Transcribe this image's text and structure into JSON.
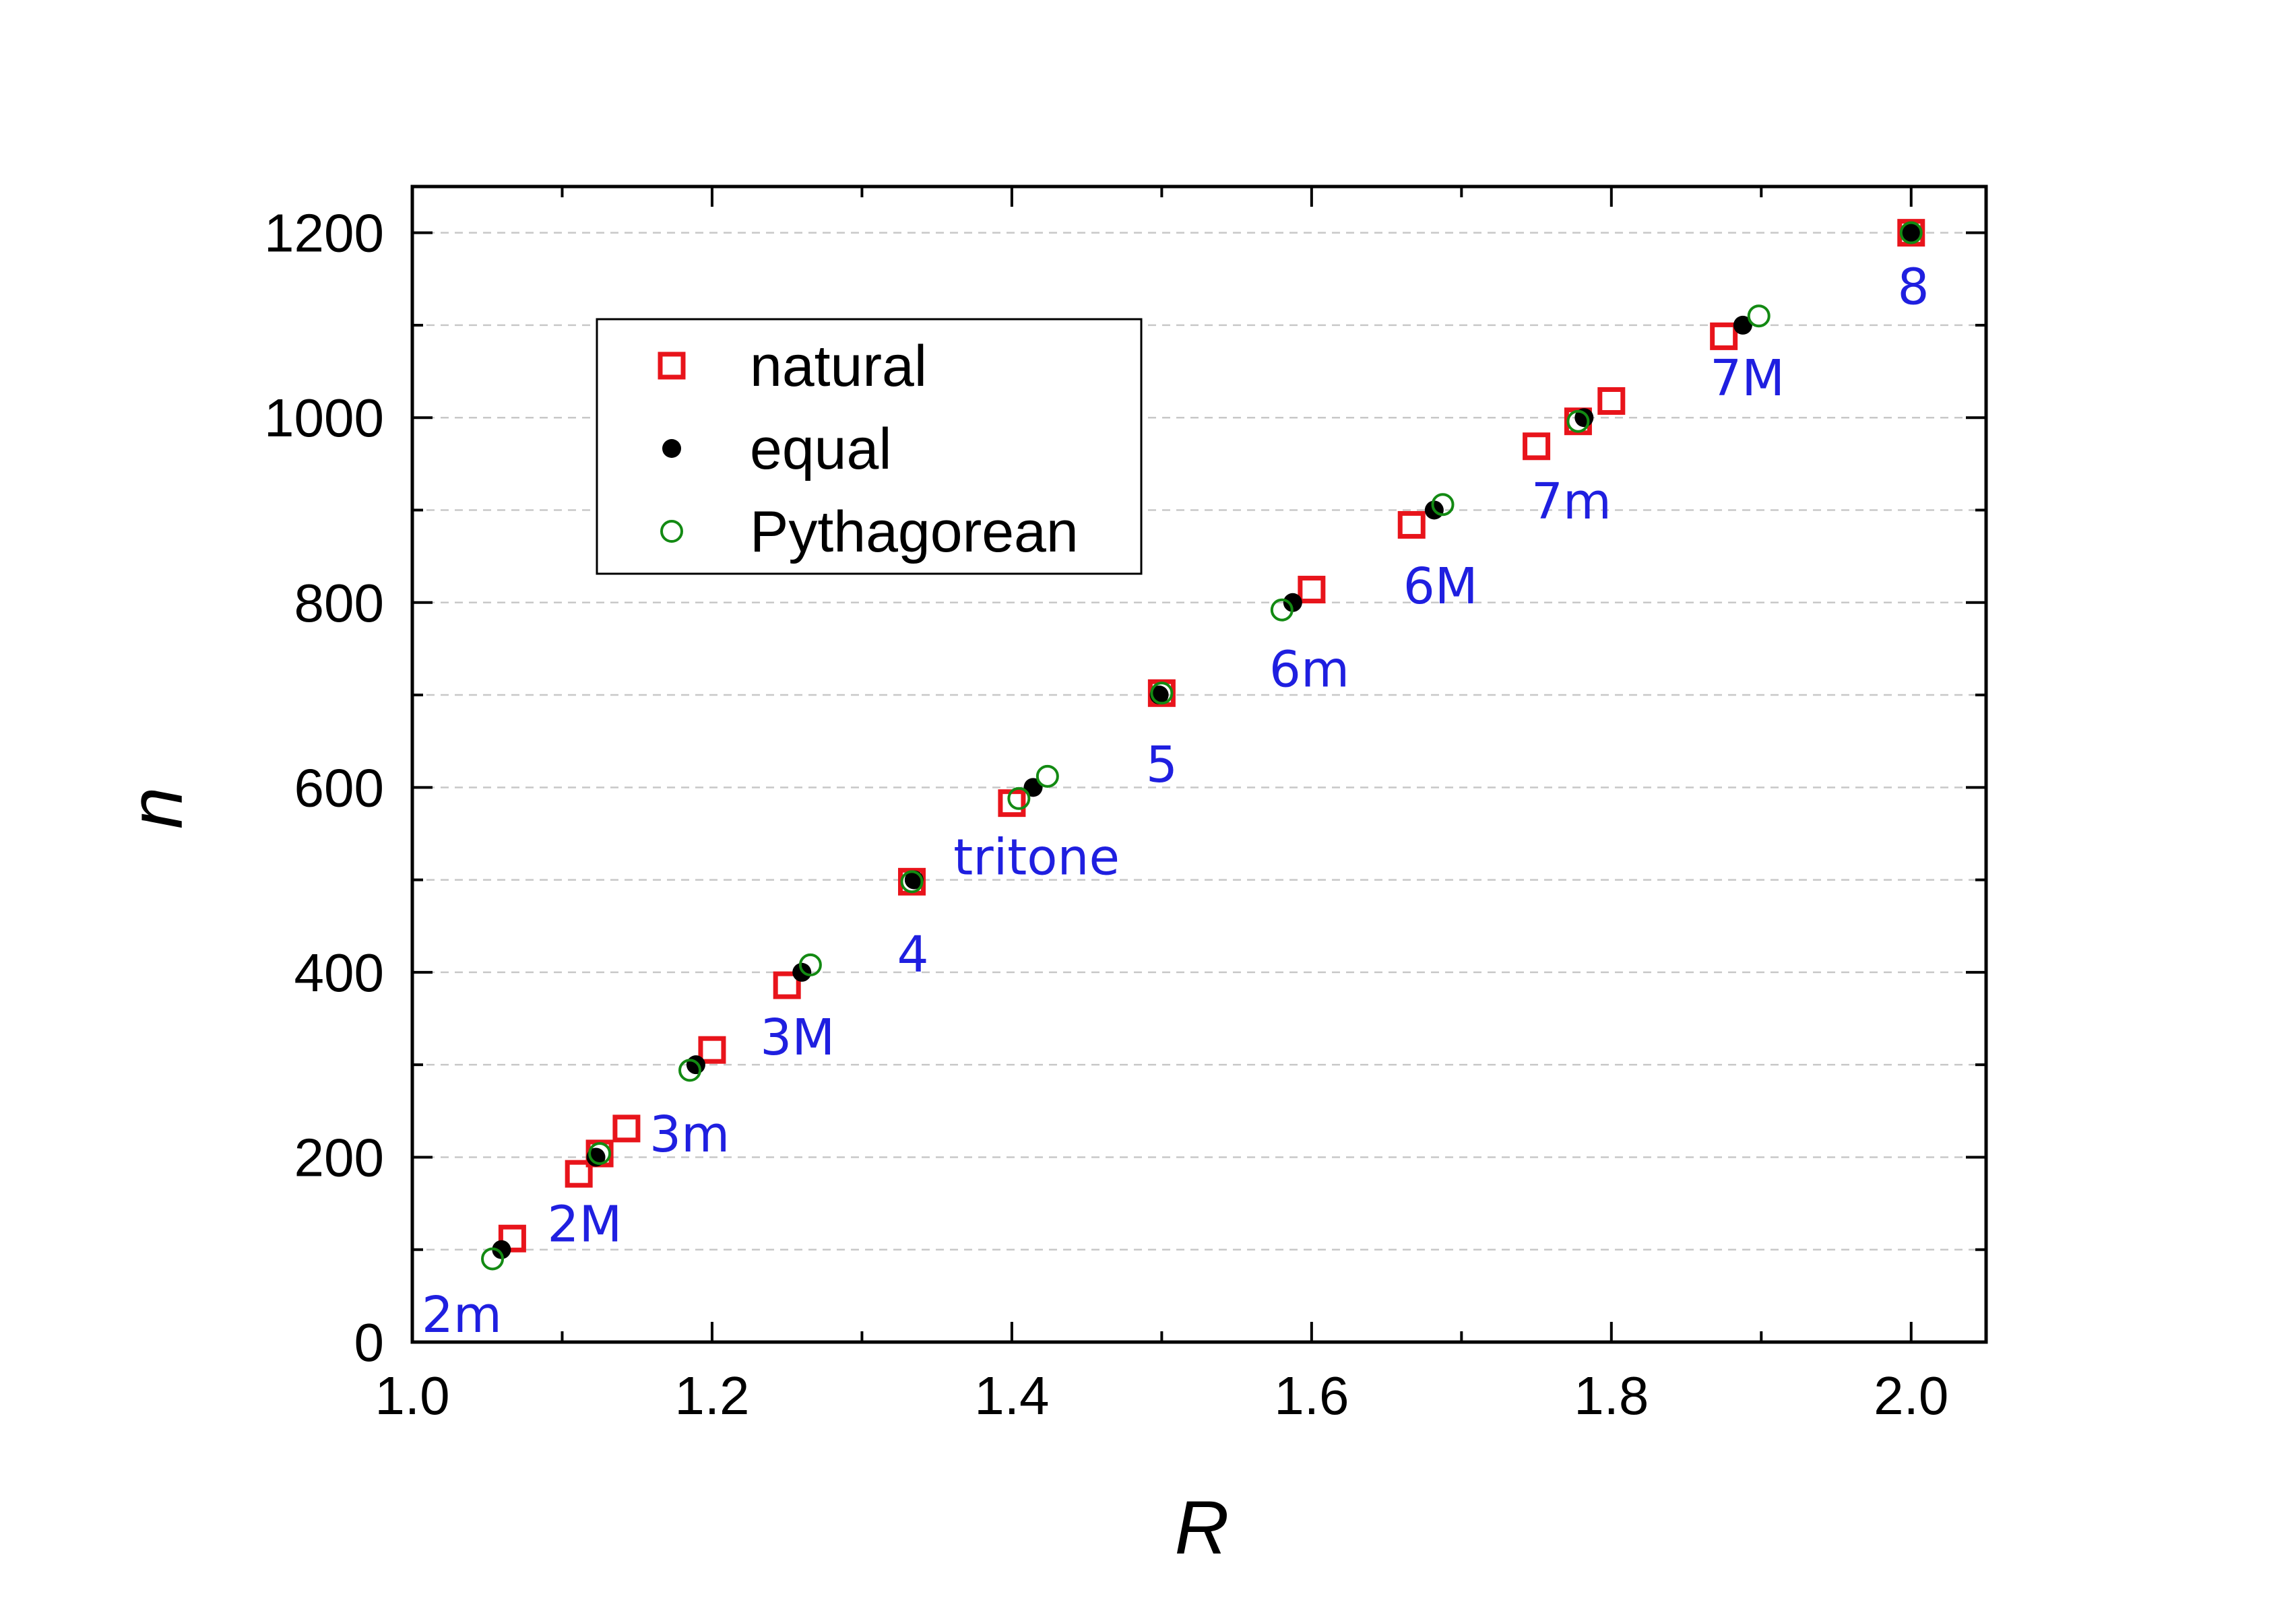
{
  "chart_data": {
    "type": "scatter",
    "title": "",
    "xlabel": "R",
    "ylabel": "n",
    "xlim": [
      1.0,
      2.05
    ],
    "ylim": [
      0,
      1250
    ],
    "xticks": [
      "1.0",
      "1.2",
      "1.4",
      "1.6",
      "1.8",
      "2.0"
    ],
    "yticks": [
      "0",
      "200",
      "400",
      "600",
      "800",
      "1000",
      "1200"
    ],
    "grid": "horizontal dashed",
    "legend_position": "upper-left",
    "colors": {
      "natural": "#e8141b",
      "equal": "#000000",
      "pythagorean": "#138a13",
      "annotation": "#1f1fe0"
    },
    "series": [
      {
        "name": "natural",
        "marker": "open-square",
        "points": [
          [
            1.0667,
            112
          ],
          [
            1.1111,
            182
          ],
          [
            1.125,
            204
          ],
          [
            1.1429,
            231
          ],
          [
            1.2,
            316
          ],
          [
            1.25,
            386
          ],
          [
            1.3333,
            498
          ],
          [
            1.4,
            583
          ],
          [
            1.5,
            702
          ],
          [
            1.6,
            814
          ],
          [
            1.6667,
            884
          ],
          [
            1.75,
            969
          ],
          [
            1.7778,
            996
          ],
          [
            1.8,
            1018
          ],
          [
            1.875,
            1088
          ],
          [
            2.0,
            1200
          ]
        ]
      },
      {
        "name": "equal",
        "marker": "filled-circle",
        "points": [
          [
            1.0595,
            100
          ],
          [
            1.1225,
            200
          ],
          [
            1.1892,
            300
          ],
          [
            1.2599,
            400
          ],
          [
            1.3348,
            500
          ],
          [
            1.4142,
            600
          ],
          [
            1.4983,
            700
          ],
          [
            1.5874,
            800
          ],
          [
            1.6818,
            900
          ],
          [
            1.7818,
            1000
          ],
          [
            1.8877,
            1100
          ],
          [
            2.0,
            1200
          ]
        ]
      },
      {
        "name": "Pythagorean",
        "marker": "open-circle",
        "points": [
          [
            1.0535,
            90
          ],
          [
            1.125,
            204
          ],
          [
            1.1852,
            294
          ],
          [
            1.2656,
            408
          ],
          [
            1.3333,
            498
          ],
          [
            1.4047,
            588
          ],
          [
            1.4238,
            612
          ],
          [
            1.5,
            702
          ],
          [
            1.5802,
            792
          ],
          [
            1.6875,
            906
          ],
          [
            1.7778,
            996
          ],
          [
            1.8984,
            1110
          ],
          [
            2.0,
            1200
          ]
        ]
      }
    ],
    "annotations": [
      {
        "text": "2m",
        "x": 1.033,
        "y": 30
      },
      {
        "text": "2M",
        "x": 1.115,
        "y": 128
      },
      {
        "text": "3m",
        "x": 1.185,
        "y": 225
      },
      {
        "text": "3M",
        "x": 1.257,
        "y": 330
      },
      {
        "text": "4",
        "x": 1.334,
        "y": 420
      },
      {
        "text": "tritone",
        "x": 1.4165,
        "y": 525
      },
      {
        "text": "5",
        "x": 1.5,
        "y": 625
      },
      {
        "text": "6m",
        "x": 1.5985,
        "y": 728
      },
      {
        "text": "6M",
        "x": 1.686,
        "y": 818
      },
      {
        "text": "7m",
        "x": 1.7733,
        "y": 910
      },
      {
        "text": "7M",
        "x": 1.8907,
        "y": 1043
      },
      {
        "text": "8",
        "x": 2.0015,
        "y": 1142
      }
    ]
  }
}
